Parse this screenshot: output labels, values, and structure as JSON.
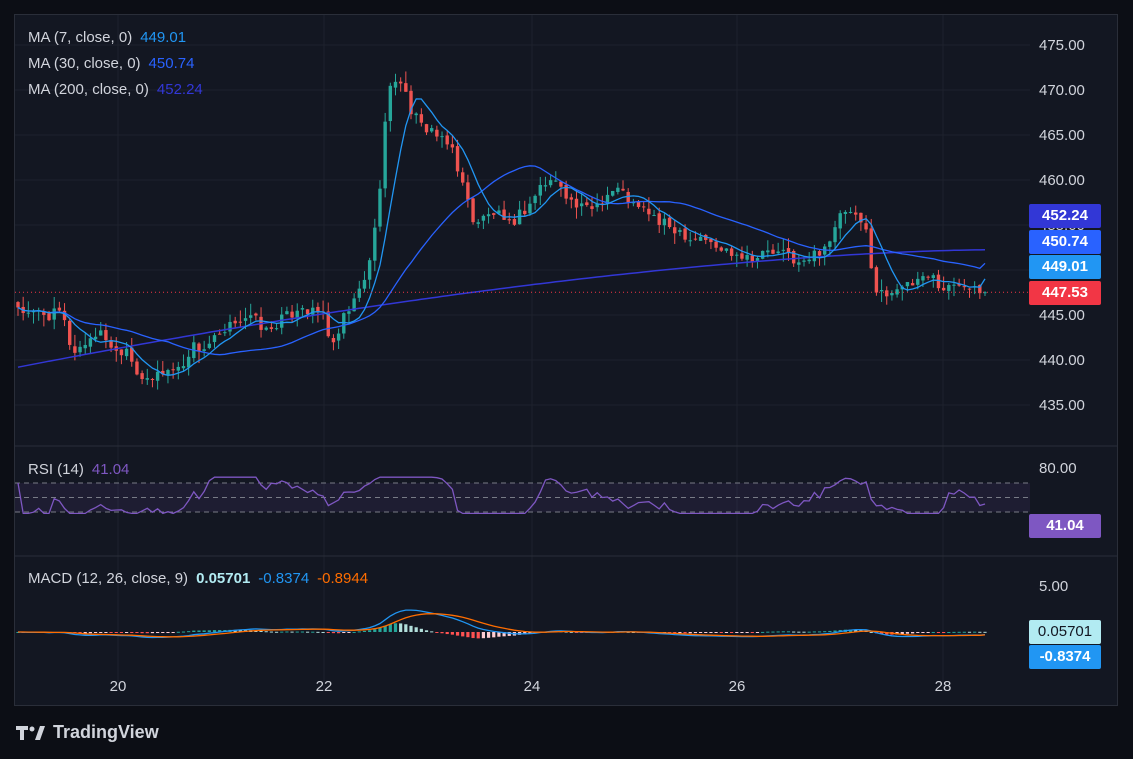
{
  "brand": {
    "name": "TradingView"
  },
  "colors": {
    "background": "#131722",
    "grid": "#1e222d",
    "up": "#26a69a",
    "down": "#ef5350",
    "ma7": "#2196f3",
    "ma30": "#2962ff",
    "ma200": "#3237d6",
    "rsi": "#7e57c2",
    "macd": "#2196f3",
    "signal": "#ff6d00"
  },
  "legend": {
    "ma7": {
      "label": "MA (7, close, 0)",
      "value": "449.01"
    },
    "ma30": {
      "label": "MA (30, close, 0)",
      "value": "450.74"
    },
    "ma200": {
      "label": "MA (200, close, 0)",
      "value": "452.24"
    },
    "rsi": {
      "label": "RSI (14)",
      "value": "41.04"
    },
    "macd": {
      "label": "MACD (12, 26, close, 9)",
      "hist": "0.05701",
      "macd": "-0.8374",
      "signal": "-0.8944"
    }
  },
  "badges": {
    "ma200": "452.24",
    "ma30": "450.74",
    "ma7": "449.01",
    "price": "447.53",
    "rsi": "41.04",
    "hist": "0.05701",
    "macd": "-0.8374"
  },
  "chart_data": [
    {
      "type": "candlestick",
      "panel": "price",
      "x_ticks": [
        "20",
        "22",
        "24",
        "26",
        "28"
      ],
      "y_ticks": [
        "475.00",
        "470.00",
        "465.00",
        "460.00",
        "455.00",
        "450.00",
        "445.00",
        "440.00",
        "435.00"
      ],
      "ylim": [
        431,
        477
      ],
      "last_price": 447.53,
      "close_path": [
        446,
        444.8,
        445.4,
        444.9,
        445.3,
        440.9,
        441.6,
        443,
        442.7,
        440.9,
        441.5,
        438.7,
        437.2,
        438.7,
        438.9,
        439.1,
        441.6,
        441.2,
        442.2,
        442.7,
        444.5,
        444.8,
        444.3,
        443,
        444.4,
        444.9,
        446.3,
        445.1,
        445.4,
        441.2,
        444.6,
        446.6,
        449.1,
        455.3,
        469.3,
        471.9,
        468.3,
        465.9,
        465.8,
        464.2,
        463.5,
        459.1,
        455.3,
        455.8,
        456.5,
        454.5,
        456.1,
        457.1,
        459.2,
        459.9,
        459.6,
        457.4,
        456.7,
        457.1,
        458.2,
        459.1,
        458.2,
        456.7,
        456.6,
        455.2,
        454.8,
        454.4,
        453.5,
        453.9,
        452.5,
        452.2,
        452.1,
        451.6,
        451.4,
        452.1,
        451.7,
        451.8,
        450.4,
        451.4,
        452.5,
        453.8,
        456.7,
        455.7,
        454.6,
        447.6,
        447.3,
        448.5,
        447.9,
        449.3,
        449.6,
        447.9,
        448.1,
        448.7,
        448.5,
        447.53
      ],
      "ma7": {
        "end": 449.01
      },
      "ma30": {
        "end": 450.74
      },
      "ma200": {
        "end": 452.24
      }
    },
    {
      "type": "line",
      "panel": "rsi",
      "name": "RSI (14)",
      "y_ticks": [
        "80.00"
      ],
      "ylim": [
        20,
        90
      ],
      "band": [
        30,
        70
      ],
      "midline": 50,
      "last": 41.04
    },
    {
      "type": "histogram+line",
      "panel": "macd",
      "name": "MACD (12, 26, close, 9)",
      "y_ticks": [
        "5.00"
      ],
      "ylim": [
        -8,
        8
      ],
      "last": {
        "hist": 0.05701,
        "macd": -0.8374,
        "signal": -0.8944
      }
    }
  ]
}
